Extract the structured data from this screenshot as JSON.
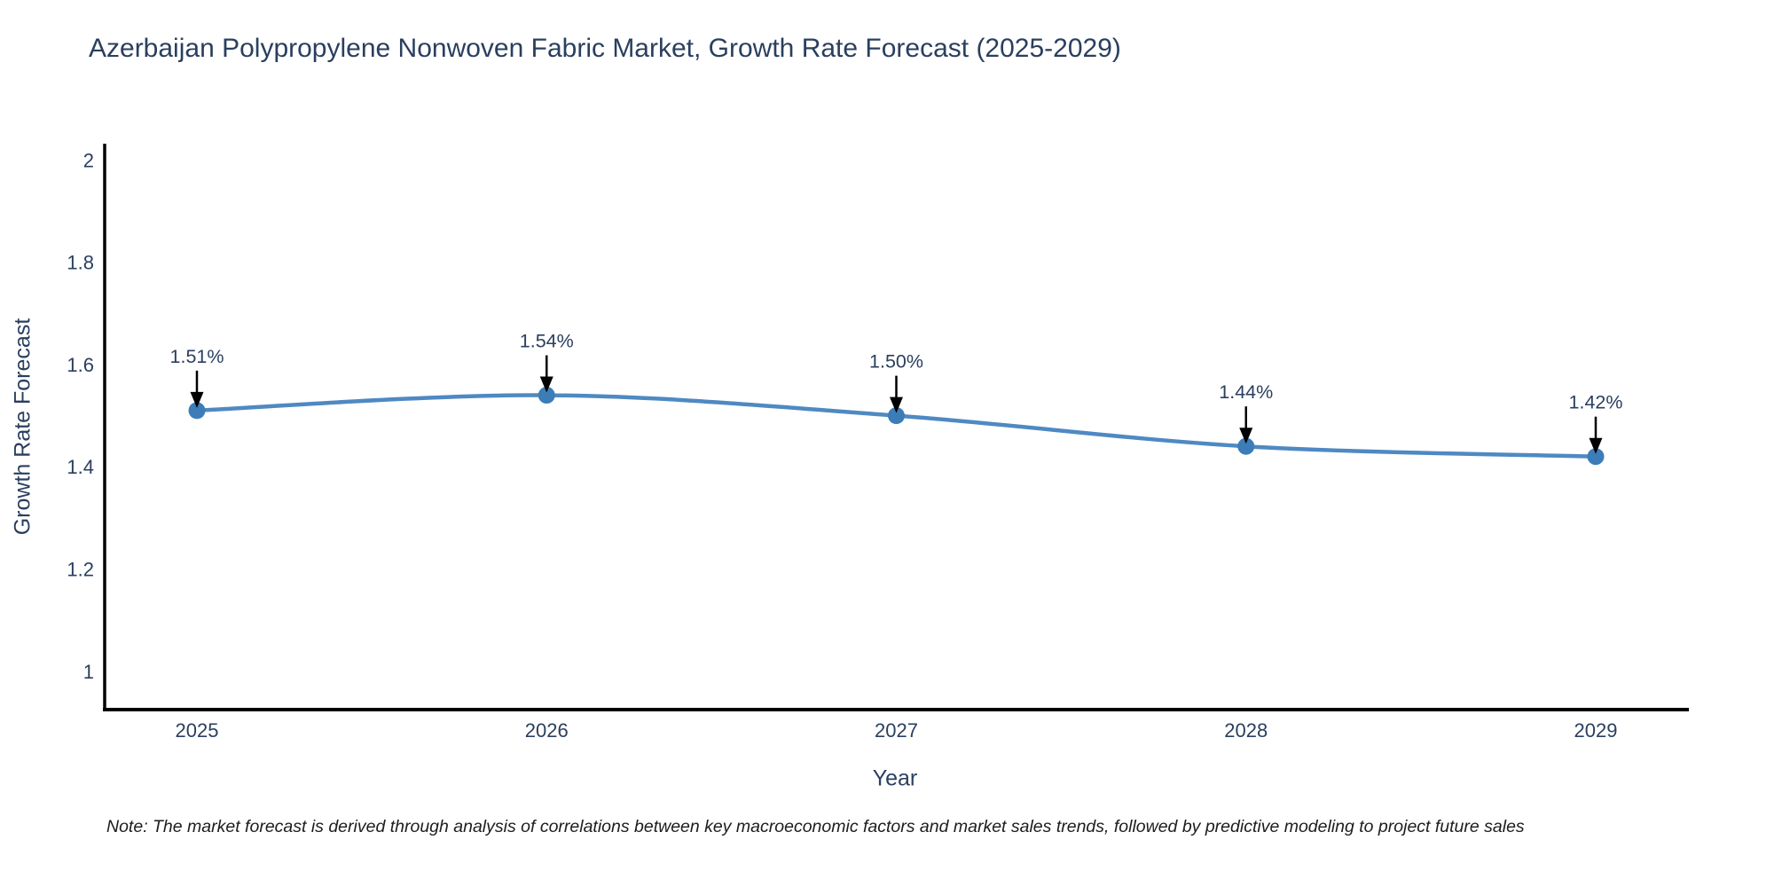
{
  "title": "Azerbaijan Polypropylene Nonwoven Fabric Market, Growth Rate Forecast (2025-2029)",
  "note": "Note: The market forecast is derived through analysis of correlations between key macroeconomic factors and market sales trends, followed by predictive modeling to project future sales",
  "chart_data": {
    "type": "line",
    "title": "Azerbaijan Polypropylene Nonwoven Fabric Market, Growth Rate Forecast (2025-2029)",
    "x": [
      2025,
      2026,
      2027,
      2028,
      2029
    ],
    "y": [
      1.51,
      1.54,
      1.5,
      1.44,
      1.42
    ],
    "point_labels": [
      "1.51%",
      "1.54%",
      "1.50%",
      "1.44%",
      "1.42%"
    ],
    "xlabel": "Year",
    "ylabel": "Growth Rate Forecast",
    "xticks": [
      "2025",
      "2026",
      "2027",
      "2028",
      "2029"
    ],
    "yticks": [
      1,
      1.2,
      1.4,
      1.6,
      1.8,
      2
    ],
    "ylim": [
      0.925,
      2.032
    ],
    "grid": false,
    "legend": "none",
    "line_shape": "spline",
    "line_color": "#4f89c2",
    "marker_color": "#3c7db8",
    "axis_color": "#000000",
    "text_color": "#2a3f5f",
    "annotation_color": "#2a3f5f",
    "arrow_color": "#000000"
  }
}
